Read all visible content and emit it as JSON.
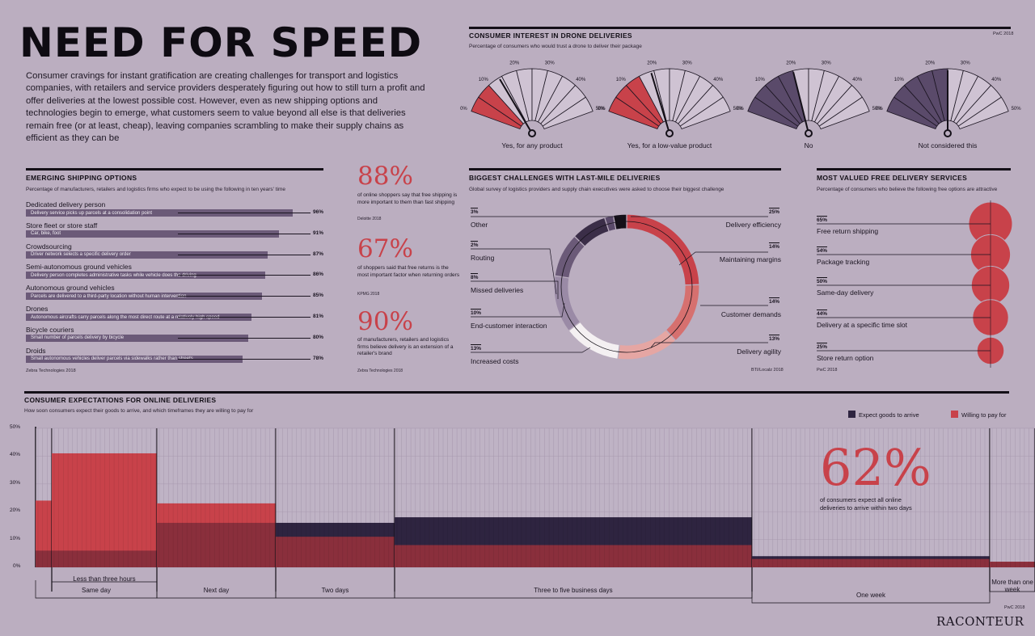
{
  "title": "NEED FOR SPEED",
  "intro": "Consumer cravings for instant gratification are creating challenges for transport and logistics companies, with retailers and service providers desperately figuring out how to still turn a profit and offer deliveries at the lowest possible cost. However, even as new shipping options and technologies begin to emerge, what customers seem to value beyond all else is that deliveries remain free (or at least, cheap), leaving companies scrambling to make their supply chains as efficient as they can be",
  "drone": {
    "heading": "CONSUMER INTEREST IN DRONE DELIVERIES",
    "subtitle": "Percentage of consumers who would trust a drone to deliver their package",
    "source": "PwC 2018",
    "ticks": [
      "0%",
      "10%",
      "20%",
      "30%",
      "40%",
      "50%"
    ]
  },
  "shipping": {
    "heading": "EMERGING SHIPPING OPTIONS",
    "subtitle": "Percentage of manufacturers, retailers and logistics firms who expect to be using the following in ten years' time",
    "source": "Zebra Technologies 2018"
  },
  "stats": [
    {
      "value": "88%",
      "text": "of online shoppers say that free shipping is more important to them than fast shipping",
      "source": "Deloitte 2018"
    },
    {
      "value": "67%",
      "text": "of shoppers said that free returns is the most important factor when returning orders",
      "source": "KPMG 2018"
    },
    {
      "value": "90%",
      "text": "of manufacturers, retailers and logistics firms believe delivery is an extension of a retailer's brand",
      "source": "Zebra Technologies 2018"
    }
  ],
  "challenges": {
    "heading": "BIGGEST CHALLENGES WITH LAST-MILE DELIVERIES",
    "subtitle": "Global survey of logistics providers and supply chain executives were asked to choose their biggest challenge",
    "source": "BTI/Localz 2018"
  },
  "free": {
    "heading": "MOST VALUED FREE DELIVERY SERVICES",
    "subtitle": "Percentage of consumers who believe the following free options are attractive",
    "source": "PwC 2018"
  },
  "expect": {
    "heading": "CONSUMER EXPECTATIONS FOR ONLINE DELIVERIES",
    "subtitle": "How soon consumers expect their goods to arrive, and which timeframes they are willing to pay for",
    "source": "PwC 2018",
    "big": "62%",
    "big_text": "of consumers expect all online deliveries to arrive within two days",
    "colors": {
      "expect": "#2e2440",
      "pay": "#c8424a"
    }
  },
  "logo": "RACONTEUR",
  "chart_data": [
    {
      "type": "gauge",
      "title": "CONSUMER INTEREST IN DRONE DELIVERIES",
      "range": [
        0,
        50
      ],
      "series": [
        {
          "name": "Yes, for any product",
          "value": 14,
          "color": "#c8424a"
        },
        {
          "name": "Yes, for a low-value product",
          "value": 19,
          "color": "#c8424a"
        },
        {
          "name": "No",
          "value": 20,
          "color": "#5a4a6a"
        },
        {
          "name": "Not considered this",
          "value": 25,
          "color": "#5a4a6a"
        }
      ]
    },
    {
      "type": "bar",
      "title": "EMERGING SHIPPING OPTIONS",
      "xlim": [
        0,
        100
      ],
      "categories": [
        "Dedicated delivery person",
        "Store fleet or store staff",
        "Crowdsourcing",
        "Semi-autonomous ground vehicles",
        "Autonomous ground vehicles",
        "Drones",
        "Bicycle couriers",
        "Droids"
      ],
      "descriptions": [
        "Delivery service picks up parcels at a consolidation point",
        "Car, bike, foot",
        "Driver network selects a specific delivery order",
        "Delivery person completes administrative tasks while vehicle does the driving",
        "Parcels are delivered to a third-party location without human intervention",
        "Autonomous aircrafts carry parcels along the most direct route at a relatively high speed",
        "Small number of parcels delivery by bicycle",
        "Small autonomous vehicles deliver parcels via sidewalks rather than streets"
      ],
      "values": [
        96,
        91,
        87,
        86,
        85,
        81,
        80,
        78
      ],
      "labels": [
        "96%",
        "91%",
        "87%",
        "86%",
        "85%",
        "81%",
        "80%",
        "78%"
      ]
    },
    {
      "type": "pie",
      "title": "BIGGEST CHALLENGES WITH LAST-MILE DELIVERIES",
      "categories": [
        "Delivery efficiency",
        "Maintaining margins",
        "Customer demands",
        "Delivery agility",
        "Increased costs",
        "End-customer interaction",
        "Missed deliveries",
        "Routing",
        "Other"
      ],
      "values": [
        25,
        14,
        14,
        13,
        13,
        10,
        8,
        2,
        3
      ],
      "labels": [
        "25%",
        "14%",
        "14%",
        "13%",
        "13%",
        "10%",
        "8%",
        "2%",
        "3%"
      ],
      "colors": [
        "#c8424a",
        "#d6706f",
        "#e5a6a3",
        "#f4f0f2",
        "#9a8aa6",
        "#6b5a78",
        "#3b2e48",
        "#5a4a6a",
        "#141018"
      ]
    },
    {
      "type": "bubble",
      "title": "MOST VALUED FREE DELIVERY SERVICES",
      "categories": [
        "Free return shipping",
        "Package tracking",
        "Same-day delivery",
        "Delivery at a specific time slot",
        "Store return option"
      ],
      "values": [
        65,
        54,
        50,
        44,
        25
      ],
      "labels": [
        "65%",
        "54%",
        "50%",
        "44%",
        "25%"
      ]
    },
    {
      "type": "bar",
      "title": "CONSUMER EXPECTATIONS FOR ONLINE DELIVERIES",
      "ylim": [
        0,
        50
      ],
      "yticks": [
        "0%",
        "10%",
        "20%",
        "30%",
        "40%",
        "50%"
      ],
      "categories": [
        "Less than three hours",
        "Same day",
        "Next day",
        "Two days",
        "Three to five business days",
        "One week",
        "More than one week"
      ],
      "series": [
        {
          "name": "Expect goods to arrive",
          "values": [
            6,
            6,
            16,
            16,
            18,
            4,
            2
          ]
        },
        {
          "name": "Willing to pay for",
          "values": [
            24,
            41,
            23,
            11,
            8,
            3,
            2
          ]
        }
      ]
    }
  ]
}
